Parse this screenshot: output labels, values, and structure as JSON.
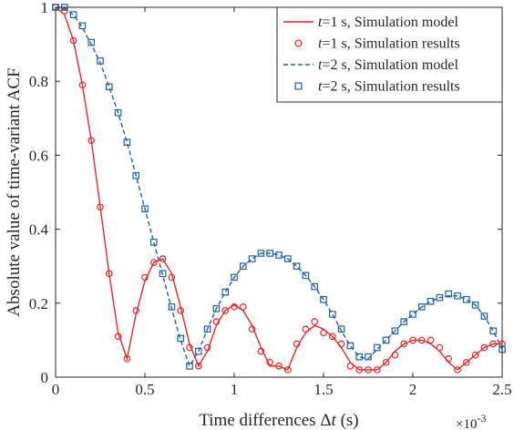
{
  "chart_data": {
    "type": "line",
    "xlabel_prefix": "Time differences ",
    "xlabel_delta": "Δ",
    "xlabel_var": "t",
    "xlabel_suffix": " (s)",
    "ylabel": "Absolute value of time-variant ACF",
    "x_exponent_base": "×10",
    "x_exponent_power": "-3",
    "xlim": [
      0,
      0.0025
    ],
    "ylim": [
      0,
      1
    ],
    "x_ticks": [
      0,
      0.0005,
      0.001,
      0.0015,
      0.002,
      0.0025
    ],
    "x_tick_labels": [
      "0",
      "0.5",
      "1",
      "1.5",
      "2",
      "2.5"
    ],
    "y_ticks": [
      0,
      0.2,
      0.4,
      0.6,
      0.8,
      1
    ],
    "y_tick_labels": [
      "0",
      "0.2",
      "0.4",
      "0.6",
      "0.8",
      "1"
    ],
    "grid": false,
    "legend_position": "top-right",
    "colors": {
      "red": "#e8262b",
      "blue": "#1f5fa6"
    },
    "series": [
      {
        "legend_var": "t",
        "legend_rest": "=1 s, Simulation model",
        "style": "solid-line",
        "color": "#e8262b",
        "x": [
          0,
          5e-05,
          0.0001,
          0.00015,
          0.0002,
          0.00025,
          0.0003,
          0.00035,
          0.0004,
          0.00045,
          0.0005,
          0.00055,
          0.0006,
          0.00065,
          0.0007,
          0.00075,
          0.0008,
          0.00085,
          0.0009,
          0.00095,
          0.001,
          0.00105,
          0.0011,
          0.00115,
          0.0012,
          0.00125,
          0.0013,
          0.00135,
          0.0014,
          0.00145,
          0.0015,
          0.00155,
          0.0016,
          0.00165,
          0.0017,
          0.00175,
          0.0018,
          0.00185,
          0.0019,
          0.00195,
          0.002,
          0.00205,
          0.0021,
          0.00215,
          0.0022,
          0.00225,
          0.0023,
          0.00235,
          0.0024,
          0.00245,
          0.0025
        ],
        "y": [
          1,
          0.98,
          0.91,
          0.79,
          0.64,
          0.46,
          0.28,
          0.12,
          0.05,
          0.17,
          0.26,
          0.31,
          0.32,
          0.28,
          0.19,
          0.09,
          0.03,
          0.07,
          0.14,
          0.18,
          0.195,
          0.18,
          0.14,
          0.08,
          0.03,
          0.03,
          0.02,
          0.08,
          0.12,
          0.14,
          0.13,
          0.11,
          0.08,
          0.04,
          0.02,
          0.02,
          0.02,
          0.04,
          0.07,
          0.09,
          0.1,
          0.1,
          0.09,
          0.07,
          0.04,
          0.02,
          0.04,
          0.06,
          0.08,
          0.09,
          0.09
        ]
      },
      {
        "legend_var": "t",
        "legend_rest": "=1 s, Simulation results",
        "style": "circle-markers",
        "color": "#e8262b",
        "x": [
          0,
          5e-05,
          0.0001,
          0.00015,
          0.0002,
          0.00025,
          0.0003,
          0.00035,
          0.0004,
          0.00045,
          0.0005,
          0.00055,
          0.0006,
          0.00065,
          0.0007,
          0.00075,
          0.0008,
          0.00085,
          0.0009,
          0.00095,
          0.001,
          0.00105,
          0.0011,
          0.00115,
          0.0012,
          0.00125,
          0.0013,
          0.00135,
          0.0014,
          0.00145,
          0.0015,
          0.00155,
          0.0016,
          0.00165,
          0.0017,
          0.00175,
          0.0018,
          0.00185,
          0.0019,
          0.00195,
          0.002,
          0.00205,
          0.0021,
          0.00215,
          0.0022,
          0.00225,
          0.0023,
          0.00235,
          0.0024,
          0.00245,
          0.0025
        ],
        "y": [
          1,
          0.99,
          0.91,
          0.79,
          0.64,
          0.46,
          0.28,
          0.11,
          0.05,
          0.18,
          0.27,
          0.31,
          0.32,
          0.27,
          0.18,
          0.08,
          0.03,
          0.08,
          0.15,
          0.18,
          0.19,
          0.19,
          0.13,
          0.07,
          0.04,
          0.03,
          0.02,
          0.09,
          0.13,
          0.15,
          0.12,
          0.11,
          0.09,
          0.03,
          0.02,
          0.02,
          0.02,
          0.04,
          0.06,
          0.09,
          0.1,
          0.1,
          0.1,
          0.08,
          0.05,
          0.02,
          0.04,
          0.06,
          0.08,
          0.09,
          0.09
        ]
      },
      {
        "legend_var": "t",
        "legend_rest": "=2 s, Simulation model",
        "style": "dashed-line",
        "color": "#1f5fa6",
        "x": [
          0,
          5e-05,
          0.0001,
          0.00015,
          0.0002,
          0.00025,
          0.0003,
          0.00035,
          0.0004,
          0.00045,
          0.0005,
          0.00055,
          0.0006,
          0.00065,
          0.0007,
          0.00075,
          0.0008,
          0.00085,
          0.0009,
          0.00095,
          0.001,
          0.00105,
          0.0011,
          0.00115,
          0.0012,
          0.00125,
          0.0013,
          0.00135,
          0.0014,
          0.00145,
          0.0015,
          0.00155,
          0.0016,
          0.00165,
          0.0017,
          0.00175,
          0.0018,
          0.00185,
          0.0019,
          0.00195,
          0.002,
          0.00205,
          0.0021,
          0.00215,
          0.0022,
          0.00225,
          0.0023,
          0.00235,
          0.0024,
          0.00245,
          0.0025
        ],
        "y": [
          1,
          0.995,
          0.98,
          0.945,
          0.9,
          0.85,
          0.785,
          0.715,
          0.635,
          0.545,
          0.455,
          0.365,
          0.275,
          0.185,
          0.1,
          0.03,
          0.07,
          0.13,
          0.185,
          0.23,
          0.27,
          0.3,
          0.32,
          0.335,
          0.335,
          0.33,
          0.32,
          0.3,
          0.275,
          0.245,
          0.21,
          0.17,
          0.125,
          0.085,
          0.055,
          0.05,
          0.075,
          0.1,
          0.125,
          0.15,
          0.17,
          0.19,
          0.205,
          0.215,
          0.22,
          0.22,
          0.21,
          0.195,
          0.165,
          0.125,
          0.075
        ]
      },
      {
        "legend_var": "t",
        "legend_rest": "=2 s, Simulation results",
        "style": "square-markers",
        "color": "#1f5fa6",
        "x": [
          0,
          5e-05,
          0.0001,
          0.00015,
          0.0002,
          0.00025,
          0.0003,
          0.00035,
          0.0004,
          0.00045,
          0.0005,
          0.00055,
          0.0006,
          0.00065,
          0.0007,
          0.00075,
          0.0008,
          0.00085,
          0.0009,
          0.00095,
          0.001,
          0.00105,
          0.0011,
          0.00115,
          0.0012,
          0.00125,
          0.0013,
          0.00135,
          0.0014,
          0.00145,
          0.0015,
          0.00155,
          0.0016,
          0.00165,
          0.0017,
          0.00175,
          0.0018,
          0.00185,
          0.0019,
          0.00195,
          0.002,
          0.00205,
          0.0021,
          0.00215,
          0.0022,
          0.00225,
          0.0023,
          0.00235,
          0.0024,
          0.00245,
          0.0025
        ],
        "y": [
          1,
          1,
          0.98,
          0.95,
          0.905,
          0.855,
          0.785,
          0.715,
          0.635,
          0.545,
          0.455,
          0.365,
          0.28,
          0.19,
          0.105,
          0.03,
          0.07,
          0.13,
          0.185,
          0.23,
          0.27,
          0.3,
          0.32,
          0.335,
          0.335,
          0.33,
          0.32,
          0.3,
          0.275,
          0.245,
          0.21,
          0.17,
          0.13,
          0.085,
          0.055,
          0.055,
          0.08,
          0.1,
          0.125,
          0.15,
          0.17,
          0.19,
          0.205,
          0.215,
          0.225,
          0.22,
          0.21,
          0.195,
          0.165,
          0.125,
          0.075
        ]
      }
    ]
  }
}
